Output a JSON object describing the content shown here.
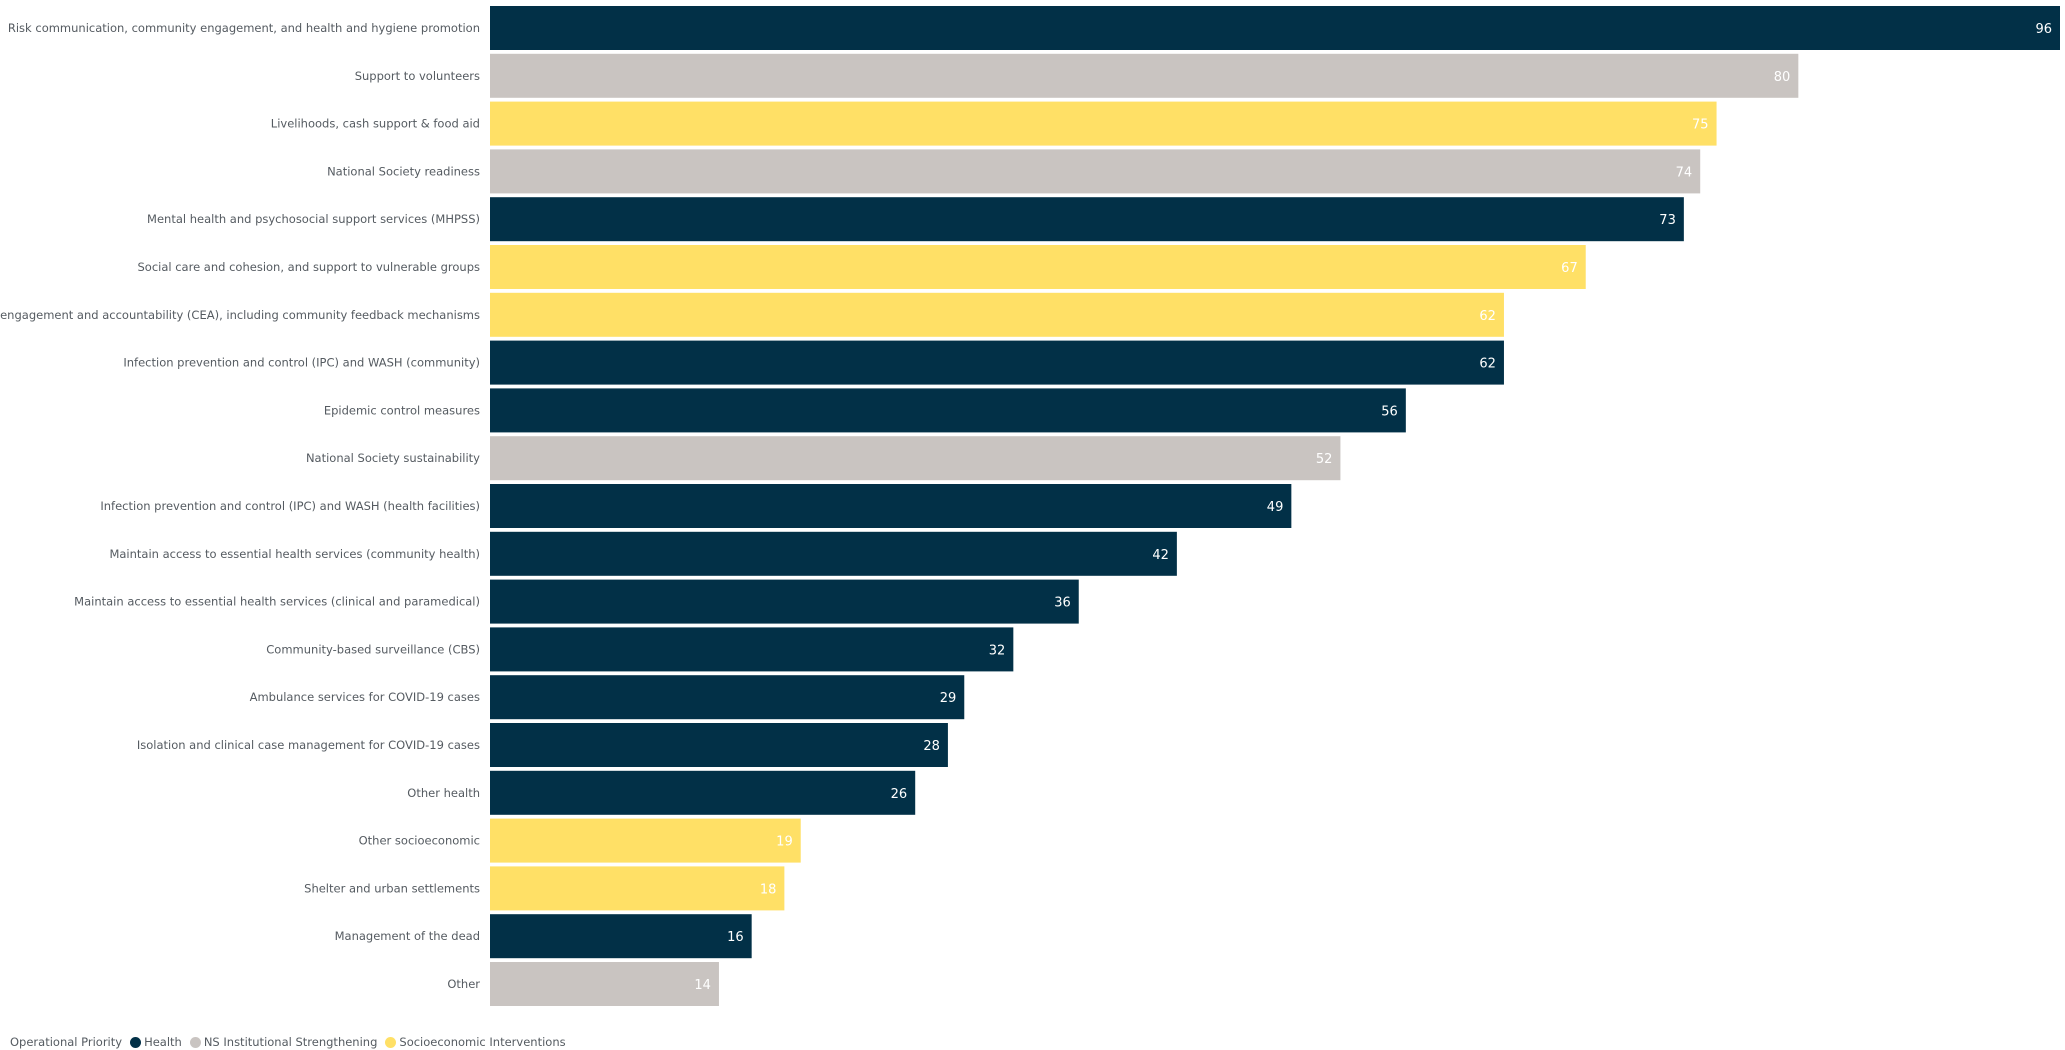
{
  "chart_data": {
    "type": "bar",
    "orientation": "horizontal",
    "categories": [
      "Risk communication, community engagement, and health and hygiene promotion",
      "Support to volunteers",
      "Livelihoods, cash support & food aid",
      "National Society readiness",
      "Mental health and psychosocial support services (MHPSS)",
      "Social care and cohesion, and support to vulnerable groups",
      "Community engagement and accountability (CEA), including community feedback mechanisms",
      "Infection prevention and control (IPC) and WASH (community)",
      "Epidemic control measures",
      "National Society sustainability",
      "Infection prevention and control (IPC) and WASH (health facilities)",
      "Maintain access to essential health services (community health)",
      "Maintain access to essential health services (clinical and paramedical)",
      "Community-based surveillance (CBS)",
      "Ambulance services for COVID-19 cases",
      "Isolation and clinical case management for COVID-19 cases",
      "Other health",
      "Other socioeconomic",
      "Shelter and urban settlements",
      "Management of the dead",
      "Other"
    ],
    "values": [
      96,
      80,
      75,
      74,
      73,
      67,
      62,
      62,
      56,
      52,
      49,
      42,
      36,
      32,
      29,
      28,
      26,
      19,
      18,
      16,
      14
    ],
    "groups": [
      "Health",
      "NS Institutional Strengthening",
      "Socioeconomic Interventions",
      "NS Institutional Strengthening",
      "Health",
      "Socioeconomic Interventions",
      "Socioeconomic Interventions",
      "Health",
      "Health",
      "NS Institutional Strengthening",
      "Health",
      "Health",
      "Health",
      "Health",
      "Health",
      "Health",
      "Health",
      "Socioeconomic Interventions",
      "Socioeconomic Interventions",
      "Health",
      "NS Institutional Strengthening"
    ],
    "xlim": [
      0,
      96
    ],
    "grid": false,
    "legend": {
      "title": "Operational Priority",
      "placement": "bottom-left",
      "items": [
        {
          "name": "Health",
          "color": "#023047"
        },
        {
          "name": "NS Institutional Strengthening",
          "color": "#c9c4c1"
        },
        {
          "name": "Socioeconomic Interventions",
          "color": "#ffe066"
        }
      ]
    },
    "colors": {
      "Health": "#023047",
      "NS Institutional Strengthening": "#c9c4c1",
      "Socioeconomic Interventions": "#ffe066"
    }
  }
}
